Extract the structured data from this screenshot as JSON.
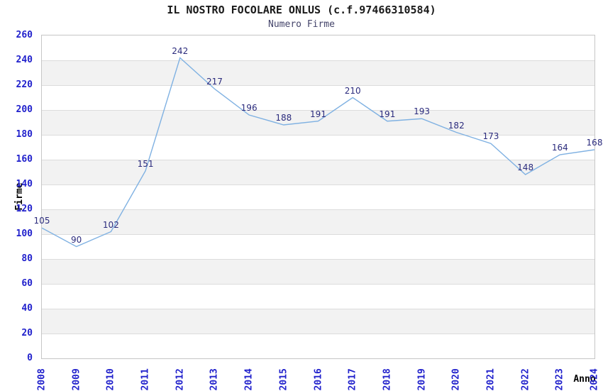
{
  "chart_data": {
    "type": "line",
    "title": "IL NOSTRO FOCOLARE ONLUS (c.f.97466310584)",
    "subtitle": "Numero Firme",
    "xlabel": "Anno",
    "ylabel": "Firme",
    "categories": [
      "2008",
      "2009",
      "2010",
      "2011",
      "2012",
      "2013",
      "2014",
      "2015",
      "2016",
      "2017",
      "2018",
      "2019",
      "2020",
      "2021",
      "2022",
      "2023",
      "2024"
    ],
    "values": [
      105,
      90,
      102,
      151,
      242,
      217,
      196,
      188,
      191,
      210,
      191,
      193,
      182,
      173,
      148,
      164,
      168
    ],
    "ylim": [
      0,
      260
    ],
    "ytick_step": 20,
    "grid": "horizontal",
    "legend_position": "none",
    "colors": {
      "line": "#7fb1e2",
      "value_label": "#2b2b7d",
      "tick_label": "#2121cc",
      "band": "#f2f2f2",
      "gridline": "#dcdcdc",
      "plot_border": "#c6c6c6",
      "title": "#1a1a1a",
      "subtitle": "#44446a",
      "axis_title": "#000000",
      "background": "#ffffff"
    }
  }
}
